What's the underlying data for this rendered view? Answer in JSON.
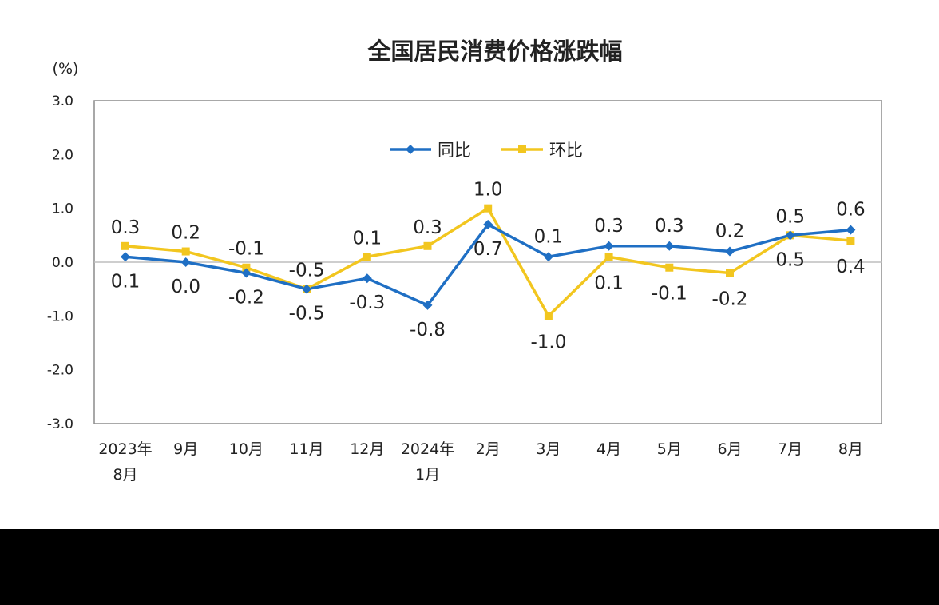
{
  "chart_data": {
    "type": "line",
    "title": "全国居民消费价格涨跌幅",
    "yunit": "(%)",
    "ylim": [
      -3.0,
      3.0
    ],
    "yticks": [
      "3.0",
      "2.0",
      "1.0",
      "0.0",
      "-1.0",
      "-2.0",
      "-3.0"
    ],
    "ytick_values": [
      3,
      2,
      1,
      0,
      -1,
      -2,
      -3
    ],
    "categories": [
      [
        "2023年",
        "8月"
      ],
      [
        "9月"
      ],
      [
        "10月"
      ],
      [
        "11月"
      ],
      [
        "12月"
      ],
      [
        "2024年",
        "1月"
      ],
      [
        "2月"
      ],
      [
        "3月"
      ],
      [
        "4月"
      ],
      [
        "5月"
      ],
      [
        "6月"
      ],
      [
        "7月"
      ],
      [
        "8月"
      ]
    ],
    "legend_position": "top-center",
    "series": [
      {
        "name": "同比",
        "color": "#1f6fc4",
        "marker": "diamond",
        "values": [
          0.1,
          0.0,
          -0.2,
          -0.5,
          -0.3,
          -0.8,
          0.7,
          0.1,
          0.3,
          0.3,
          0.2,
          0.5,
          0.6
        ],
        "labels": [
          "0.1",
          "0.0",
          "-0.2",
          "-0.5",
          "-0.3",
          "-0.8",
          "0.7",
          "0.1",
          "0.3",
          "0.3",
          "0.2",
          "0.5",
          "0.6"
        ]
      },
      {
        "name": "环比",
        "color": "#f2c61f",
        "marker": "square",
        "values": [
          0.3,
          0.2,
          -0.1,
          -0.5,
          0.1,
          0.3,
          1.0,
          -1.0,
          0.1,
          -0.1,
          -0.2,
          0.5,
          0.4
        ],
        "labels": [
          "0.3",
          "0.2",
          "-0.1",
          "-0.5",
          "0.1",
          "0.3",
          "1.0",
          "-1.0",
          "0.1",
          "-0.1",
          "-0.2",
          "0.5",
          "0.4"
        ]
      }
    ],
    "grid": false
  }
}
